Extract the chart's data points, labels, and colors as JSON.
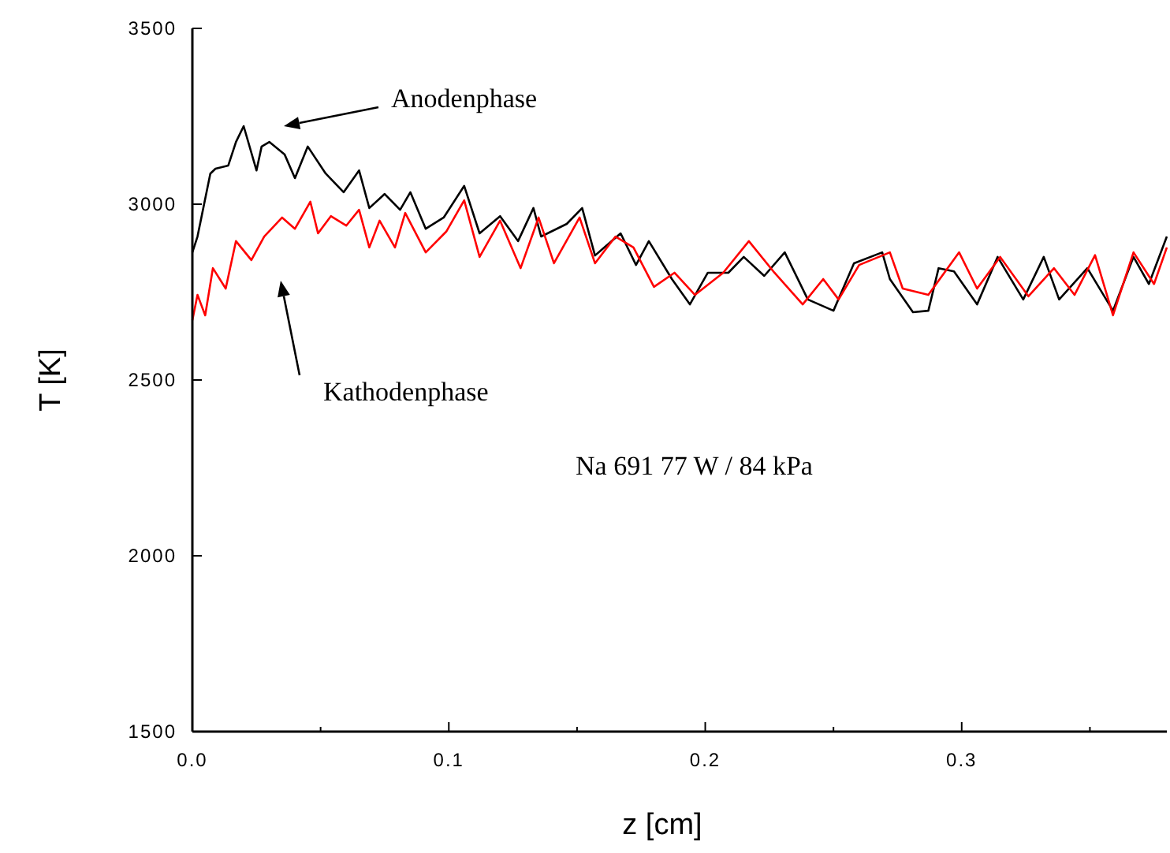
{
  "chart_data": {
    "type": "line",
    "xlabel": "z [cm]",
    "ylabel": "T [K]",
    "xlim": [
      0,
      0.38
    ],
    "ylim": [
      1500,
      3500
    ],
    "xticks": [
      {
        "value": 0,
        "label": "0.0"
      },
      {
        "value": 0.05,
        "label": null
      },
      {
        "value": 0.1,
        "label": "0.1"
      },
      {
        "value": 0.15,
        "label": null
      },
      {
        "value": 0.2,
        "label": "0.2"
      },
      {
        "value": 0.25,
        "label": null
      },
      {
        "value": 0.3,
        "label": "0.3"
      },
      {
        "value": 0.35,
        "label": null
      }
    ],
    "yticks": [
      1500,
      2000,
      2500,
      3000,
      3500
    ],
    "grid": false,
    "marker": "none",
    "line_style": "solid",
    "annotations": [
      "Anodenphase",
      "Kathodenphase",
      "Na 691 77 W / 84 kPa"
    ],
    "series": [
      {
        "color": "#000000",
        "x": [
          0,
          0.002,
          0.007,
          0.009,
          0.014,
          0.017,
          0.02,
          0.025,
          0.027,
          0.03,
          0.036,
          0.04,
          0.045,
          0.052,
          0.059,
          0.065,
          0.069,
          0.075,
          0.081,
          0.085,
          0.091,
          0.098,
          0.106,
          0.112,
          0.12,
          0.127,
          0.133,
          0.136,
          0.146,
          0.152,
          0.157,
          0.167,
          0.173,
          0.178,
          0.187,
          0.194,
          0.201,
          0.209,
          0.215,
          0.223,
          0.231,
          0.24,
          0.25,
          0.258,
          0.269,
          0.272,
          0.281,
          0.287,
          0.291,
          0.297,
          0.306,
          0.314,
          0.324,
          0.332,
          0.338,
          0.349,
          0.359,
          0.367,
          0.373,
          0.38
        ],
        "values": [
          2863,
          2908,
          3087,
          3101,
          3110,
          3177,
          3222,
          3096,
          3164,
          3177,
          3141,
          3074,
          3164,
          3087,
          3034,
          3096,
          2989,
          3029,
          2984,
          3034,
          2930,
          2962,
          3052,
          2917,
          2966,
          2895,
          2989,
          2908,
          2944,
          2989,
          2854,
          2917,
          2827,
          2895,
          2787,
          2715,
          2805,
          2805,
          2850,
          2796,
          2863,
          2729,
          2697,
          2832,
          2863,
          2787,
          2693,
          2697,
          2818,
          2809,
          2715,
          2850,
          2729,
          2850,
          2729,
          2818,
          2697,
          2850,
          2773,
          2908
        ]
      },
      {
        "color": "#ff0000",
        "x": [
          0,
          0.002,
          0.005,
          0.008,
          0.013,
          0.017,
          0.023,
          0.028,
          0.035,
          0.04,
          0.046,
          0.049,
          0.054,
          0.06,
          0.065,
          0.069,
          0.073,
          0.079,
          0.083,
          0.091,
          0.099,
          0.106,
          0.112,
          0.12,
          0.128,
          0.135,
          0.141,
          0.151,
          0.157,
          0.165,
          0.172,
          0.18,
          0.188,
          0.196,
          0.207,
          0.217,
          0.227,
          0.238,
          0.246,
          0.252,
          0.26,
          0.272,
          0.277,
          0.287,
          0.299,
          0.306,
          0.315,
          0.326,
          0.336,
          0.344,
          0.352,
          0.359,
          0.367,
          0.375,
          0.38
        ],
        "values": [
          2670,
          2742,
          2684,
          2818,
          2760,
          2895,
          2841,
          2908,
          2962,
          2930,
          3007,
          2917,
          2966,
          2939,
          2984,
          2877,
          2953,
          2877,
          2975,
          2863,
          2922,
          3011,
          2850,
          2953,
          2818,
          2962,
          2832,
          2962,
          2832,
          2908,
          2877,
          2765,
          2805,
          2742,
          2805,
          2895,
          2805,
          2715,
          2787,
          2729,
          2827,
          2863,
          2760,
          2742,
          2863,
          2760,
          2850,
          2738,
          2818,
          2742,
          2855,
          2684,
          2863,
          2773,
          2877
        ]
      }
    ]
  }
}
